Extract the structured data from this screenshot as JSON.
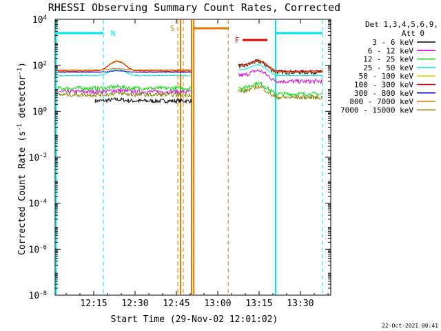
{
  "chart_data": {
    "type": "line",
    "title": "RHESSI Observing Summary Count Rates, Corrected",
    "xlabel": "Start Time (29-Nov-02 12:01:02)",
    "ylabel_main": "Corrected Count Rate (s",
    "ylabel_sup1": "-1",
    "ylabel_mid": " detector",
    "ylabel_sup2": "-1",
    "ylabel_end": ")",
    "yscale": "log",
    "ylim": [
      1e-08,
      10000.0
    ],
    "xlim_minutes": [
      0,
      100
    ],
    "x_ticks": [
      {
        "label": "12:15",
        "min": 14
      },
      {
        "label": "12:30",
        "min": 29
      },
      {
        "label": "12:45",
        "min": 44
      },
      {
        "label": "13:00",
        "min": 59
      },
      {
        "label": "13:15",
        "min": 74
      },
      {
        "label": "13:30",
        "min": 89
      }
    ],
    "y_ticks": [
      {
        "base": "10",
        "exp": "4",
        "val": 4
      },
      {
        "base": "10",
        "exp": "2",
        "val": 2
      },
      {
        "base": "10",
        "exp": "0",
        "val": 0
      },
      {
        "base": "10",
        "exp": "-2",
        "val": -2
      },
      {
        "base": "10",
        "exp": "-4",
        "val": -4
      },
      {
        "base": "10",
        "exp": "-6",
        "val": -6
      },
      {
        "base": "10",
        "exp": "-8",
        "val": -8
      }
    ],
    "legend_header": [
      "Det 1,3,4,5,6,9,",
      "Att 0"
    ],
    "legend_position": "right",
    "series": [
      {
        "name": "3 - 6 keV",
        "color": "#000000",
        "style": "noisy",
        "level": 0.45,
        "peak_mult": 1.0,
        "x_start": 14.5,
        "late_level": 1.7
      },
      {
        "name": "6 - 12 keV",
        "color": "#dd00dd",
        "style": "noisy",
        "level": 0.85,
        "peak_mult": 1.0,
        "x_start": 1,
        "late_level": 1.3
      },
      {
        "name": "12 - 25 keV",
        "color": "#00dd00",
        "style": "noisy",
        "level": 1.0,
        "peak_mult": 1.0,
        "x_start": 1,
        "late_level": 0.75
      },
      {
        "name": "25 - 50 keV",
        "color": "#00e5e5",
        "style": "smooth",
        "level": 1.55,
        "peak_mult": 1.75,
        "x_start": 1,
        "late_level": 1.55
      },
      {
        "name": "50 - 100 keV",
        "color": "#e5c800",
        "style": "smooth",
        "level": 1.75,
        "peak_mult": 2.7,
        "x_start": 1,
        "late_level": 1.7
      },
      {
        "name": "100 - 300 keV",
        "color": "#dd0000",
        "style": "smooth",
        "level": 1.75,
        "peak_mult": 2.45,
        "x_start": 1,
        "late_level": 1.75
      },
      {
        "name": "300 - 800 keV",
        "color": "#0000cc",
        "style": "smooth",
        "level": 1.7,
        "peak_mult": 1.0,
        "x_start": 1,
        "late_level": 1.7
      },
      {
        "name": "800 - 7000 keV",
        "color": "#e07b00",
        "style": "smooth",
        "level": 1.8,
        "peak_mult": 1.0,
        "x_start": 1,
        "late_level": 1.7
      },
      {
        "name": "7000 - 15000 keV",
        "color": "#808000",
        "style": "noisy",
        "level": 0.72,
        "peak_mult": 1.0,
        "x_start": 1,
        "late_level": 0.6
      }
    ],
    "peak": {
      "center_min": 22.5,
      "width_min": 3.5
    },
    "gap_minutes": [
      49.5,
      66
    ],
    "markers": [
      {
        "label": "N",
        "color": "#00e5e5",
        "at_min": 21
      },
      {
        "label": "S",
        "color": "#e07b00",
        "at_min": 42.5
      },
      {
        "label": "F",
        "color": "#dd0000",
        "at_min": 66
      }
    ],
    "night_bars": [
      {
        "from_min": 0,
        "to_min": 17.5,
        "color": "#00e5e5"
      },
      {
        "from_min": 80,
        "to_min": 97,
        "color": "#00e5e5"
      }
    ],
    "saa_bars": [
      {
        "from_min": 50,
        "to_min": 63,
        "color": "#e07b00"
      }
    ],
    "flare_bar": {
      "from_min": 68,
      "to_min": 77,
      "color": "#dd0000"
    },
    "vlines": [
      {
        "min": 0.3,
        "color": "#00e5e5",
        "dash": false
      },
      {
        "min": 17.5,
        "color": "#00e5e5",
        "dash": true
      },
      {
        "min": 44.5,
        "color": "#e07b00",
        "dash": true
      },
      {
        "min": 45.5,
        "color": "#e07b00",
        "dash": false
      },
      {
        "min": 46.5,
        "color": "#e07b00",
        "dash": true
      },
      {
        "min": 49.5,
        "color": "#e07b00",
        "dash": false
      },
      {
        "min": 50.3,
        "color": "#e07b00",
        "dash": false
      },
      {
        "min": 62.8,
        "color": "#e07b00",
        "dash": true
      },
      {
        "min": 80,
        "color": "#00e5e5",
        "dash": false
      },
      {
        "min": 97,
        "color": "#00e5e5",
        "dash": true
      }
    ],
    "timestamp": "22-Oct-2021 00:41"
  }
}
